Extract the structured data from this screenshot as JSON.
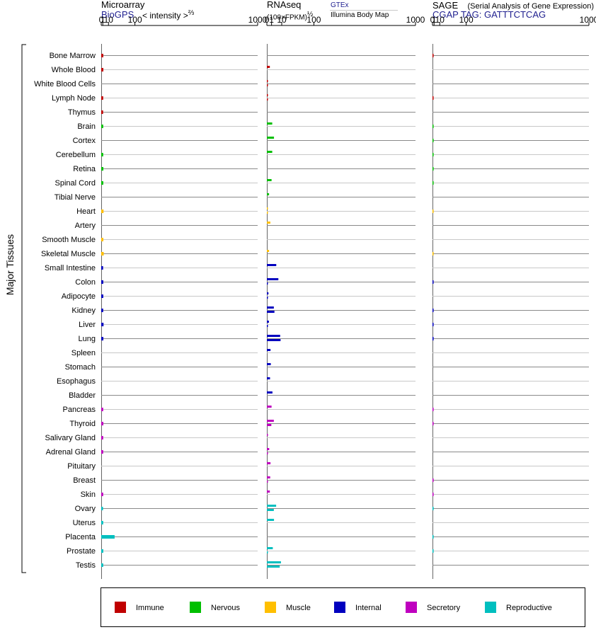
{
  "chart_data": {
    "type": "bar",
    "orientation": "horizontal",
    "group_axis_label": "Major Tissues",
    "tissues": [
      {
        "name": "Bone Marrow",
        "group": "Immune"
      },
      {
        "name": "Whole Blood",
        "group": "Immune"
      },
      {
        "name": "White Blood Cells",
        "group": "Immune"
      },
      {
        "name": "Lymph Node",
        "group": "Immune"
      },
      {
        "name": "Thymus",
        "group": "Immune"
      },
      {
        "name": "Brain",
        "group": "Nervous"
      },
      {
        "name": "Cortex",
        "group": "Nervous"
      },
      {
        "name": "Cerebellum",
        "group": "Nervous"
      },
      {
        "name": "Retina",
        "group": "Nervous"
      },
      {
        "name": "Spinal Cord",
        "group": "Nervous"
      },
      {
        "name": "Tibial Nerve",
        "group": "Nervous"
      },
      {
        "name": "Heart",
        "group": "Muscle"
      },
      {
        "name": "Artery",
        "group": "Muscle"
      },
      {
        "name": "Smooth Muscle",
        "group": "Muscle"
      },
      {
        "name": "Skeletal Muscle",
        "group": "Muscle"
      },
      {
        "name": "Small Intestine",
        "group": "Internal"
      },
      {
        "name": "Colon",
        "group": "Internal"
      },
      {
        "name": "Adipocyte",
        "group": "Internal"
      },
      {
        "name": "Kidney",
        "group": "Internal"
      },
      {
        "name": "Liver",
        "group": "Internal"
      },
      {
        "name": "Lung",
        "group": "Internal"
      },
      {
        "name": "Spleen",
        "group": "Internal"
      },
      {
        "name": "Stomach",
        "group": "Internal"
      },
      {
        "name": "Esophagus",
        "group": "Internal"
      },
      {
        "name": "Bladder",
        "group": "Internal"
      },
      {
        "name": "Pancreas",
        "group": "Secretory"
      },
      {
        "name": "Thyroid",
        "group": "Secretory"
      },
      {
        "name": "Salivary Gland",
        "group": "Secretory"
      },
      {
        "name": "Adrenal Gland",
        "group": "Secretory"
      },
      {
        "name": "Pituitary",
        "group": "Secretory"
      },
      {
        "name": "Breast",
        "group": "Secretory"
      },
      {
        "name": "Skin",
        "group": "Secretory"
      },
      {
        "name": "Ovary",
        "group": "Reproductive"
      },
      {
        "name": "Uterus",
        "group": "Reproductive"
      },
      {
        "name": "Placenta",
        "group": "Reproductive"
      },
      {
        "name": "Prostate",
        "group": "Reproductive"
      },
      {
        "name": "Testis",
        "group": "Reproductive"
      }
    ],
    "groups": [
      {
        "name": "Immune",
        "color": "#c00000"
      },
      {
        "name": "Nervous",
        "color": "#00bf00"
      },
      {
        "name": "Muscle",
        "color": "#ffbf00"
      },
      {
        "name": "Internal",
        "color": "#0000bf"
      },
      {
        "name": "Secretory",
        "color": "#bf00bf"
      },
      {
        "name": "Reproductive",
        "color": "#00bfbf"
      }
    ],
    "panels": [
      {
        "id": "microarray",
        "title": "Microarray",
        "subtitle": "BioGPS",
        "axis_label": "< intensity >",
        "axis_label_exp": "⅔",
        "scale": "power-2/3",
        "tick_labels": [
          "0",
          "1",
          "10",
          "100",
          "1000"
        ],
        "tick_values": [
          0,
          1,
          10,
          100,
          1000
        ],
        "xlim": [
          0,
          1000
        ],
        "series": [
          {
            "values": [
              1.5,
              1.6,
              null,
              1.4,
              1.3,
              1.4,
              null,
              1.4,
              1.6,
              1.5,
              null,
              1.8,
              null,
              1.6,
              2.0,
              1.3,
              1.5,
              1.5,
              1.4,
              1.8,
              1.6,
              null,
              null,
              null,
              null,
              1.4,
              1.6,
              1.4,
              1.4,
              null,
              null,
              1.4,
              1.2,
              1.4,
              25,
              1.5,
              1.4
            ]
          }
        ]
      },
      {
        "id": "rnaseq",
        "title": "RNAseq",
        "axis_label": "(100×FPKM)",
        "axis_label_exp": "½",
        "legend_top": "GTEx",
        "legend_bottom": "Illumina Body Map",
        "scale": "sqrt",
        "tick_labels": [
          "0",
          "1",
          "10",
          "100",
          "1000"
        ],
        "tick_values": [
          0,
          1,
          10,
          100,
          1000
        ],
        "xlim": [
          0,
          1000
        ],
        "series": [
          {
            "name": "GTEx",
            "values": [
              null,
              0.4,
              0.003,
              0.003,
              null,
              1.3,
              2.3,
              1.3,
              null,
              1.0,
              0.22,
              0.03,
              0.55,
              null,
              0.22,
              4.0,
              6.0,
              0.12,
              2.2,
              0.2,
              8.0,
              0.6,
              0.7,
              0.45,
              1.4,
              1.0,
              2.2,
              0.008,
              0.25,
              0.6,
              0.5,
              0.4,
              3.9,
              2.3,
              null,
              1.6,
              9.0
            ]
          },
          {
            "name": "Illumina Body Map",
            "values": [
              null,
              null,
              0.003,
              0.003,
              null,
              null,
              null,
              null,
              null,
              null,
              null,
              0.008,
              null,
              null,
              null,
              null,
              0.01,
              0.012,
              2.6,
              0.01,
              8.5,
              null,
              null,
              null,
              null,
              null,
              0.9,
              null,
              0.01,
              null,
              0.01,
              null,
              2.2,
              null,
              null,
              0.012,
              7.5
            ]
          }
        ]
      },
      {
        "id": "sage",
        "title": "SAGE",
        "title_note": "(Serial Analysis of Gene Expression)",
        "subtitle": "CGAP TAG: GATTTCTCAG",
        "scale": "power-2/3",
        "tick_labels": [
          "0",
          "1",
          "10",
          "100",
          "1000"
        ],
        "tick_values": [
          0,
          1,
          10,
          100,
          1000
        ],
        "xlim": [
          0,
          1000
        ],
        "series": [
          {
            "values": [
              0.02,
              null,
              null,
              0.02,
              null,
              0.01,
              0.01,
              0.01,
              0.01,
              0.01,
              null,
              0.01,
              null,
              null,
              0.01,
              null,
              0.02,
              null,
              0.02,
              0.02,
              0.02,
              null,
              null,
              null,
              null,
              0.02,
              0.02,
              null,
              null,
              null,
              0.02,
              0.02,
              0.01,
              null,
              0.01,
              0.01,
              null
            ]
          }
        ]
      }
    ]
  }
}
